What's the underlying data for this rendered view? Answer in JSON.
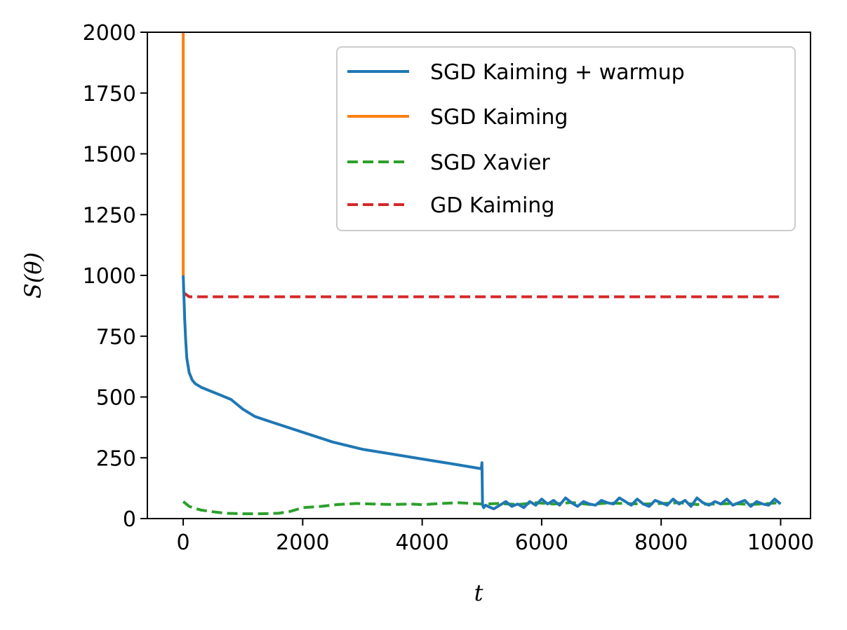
{
  "chart_data": {
    "type": "line",
    "title": "",
    "xlabel": "t",
    "ylabel": "S(θ)",
    "xlim": [
      -600,
      10500
    ],
    "ylim": [
      0,
      2000
    ],
    "xticks": [
      0,
      2000,
      4000,
      6000,
      8000,
      10000
    ],
    "xtick_labels": [
      "0",
      "2000",
      "4000",
      "6000",
      "8000",
      "10000"
    ],
    "yticks": [
      0,
      250,
      500,
      750,
      1000,
      1250,
      1500,
      1750,
      2000
    ],
    "ytick_labels": [
      "0",
      "250",
      "500",
      "750",
      "1000",
      "1250",
      "1500",
      "1750",
      "2000"
    ],
    "grid": false,
    "legend_position": "top-right",
    "series": [
      {
        "name": "SGD Kaiming + warmup",
        "color": "#1f77b4",
        "style": "solid",
        "x": [
          0,
          10,
          25,
          40,
          60,
          100,
          150,
          200,
          300,
          400,
          600,
          800,
          1000,
          1200,
          1500,
          2000,
          2500,
          3000,
          3500,
          4000,
          4500,
          4990,
          5000,
          5010,
          5020,
          5030,
          5060,
          5100,
          5200,
          5300,
          5400,
          5500,
          5600,
          5700,
          5800,
          5900,
          6000,
          6100,
          6200,
          6300,
          6400,
          6500,
          6600,
          6700,
          6800,
          6900,
          7000,
          7100,
          7200,
          7300,
          7400,
          7500,
          7600,
          7700,
          7800,
          7900,
          8000,
          8100,
          8200,
          8300,
          8400,
          8500,
          8600,
          8700,
          8800,
          8900,
          9000,
          9100,
          9200,
          9300,
          9400,
          9500,
          9600,
          9700,
          9800,
          9900,
          10000
        ],
        "y": [
          1000,
          930,
          820,
          740,
          660,
          600,
          570,
          555,
          540,
          530,
          510,
          490,
          450,
          420,
          395,
          355,
          315,
          285,
          265,
          245,
          225,
          205,
          230,
          60,
          50,
          45,
          55,
          50,
          40,
          55,
          70,
          50,
          60,
          45,
          70,
          55,
          80,
          60,
          75,
          55,
          85,
          65,
          50,
          70,
          60,
          55,
          75,
          65,
          60,
          85,
          70,
          55,
          80,
          60,
          50,
          75,
          65,
          55,
          80,
          60,
          75,
          50,
          85,
          65,
          55,
          70,
          60,
          80,
          55,
          65,
          75,
          50,
          70,
          60,
          55,
          80,
          60
        ]
      },
      {
        "name": "SGD Kaiming",
        "color": "#ff7f0e",
        "style": "solid",
        "x": [
          0,
          0,
          0
        ],
        "y": [
          1000,
          1500,
          2000
        ]
      },
      {
        "name": "SGD Xavier",
        "color": "#2ca02c",
        "style": "dashed",
        "x": [
          0,
          100,
          200,
          300,
          500,
          700,
          1000,
          1300,
          1600,
          1800,
          2000,
          2300,
          2600,
          2900,
          3200,
          3500,
          3800,
          4000,
          4300,
          4600,
          5000,
          5300,
          5600,
          5900,
          6200,
          6500,
          6800,
          7100,
          7400,
          7700,
          8000,
          8300,
          8600,
          8900,
          9200,
          9500,
          9800,
          10000
        ],
        "y": [
          70,
          50,
          42,
          35,
          28,
          22,
          20,
          20,
          22,
          30,
          45,
          50,
          58,
          62,
          60,
          58,
          60,
          57,
          62,
          65,
          60,
          62,
          58,
          65,
          60,
          66,
          58,
          64,
          62,
          60,
          62,
          65,
          58,
          60,
          62,
          58,
          62,
          65
        ]
      },
      {
        "name": "GD Kaiming",
        "color": "#d62728",
        "style": "dashed",
        "x": [
          0,
          100,
          1000,
          5000,
          10000
        ],
        "y": [
          930,
          912,
          912,
          912,
          912
        ]
      }
    ]
  }
}
